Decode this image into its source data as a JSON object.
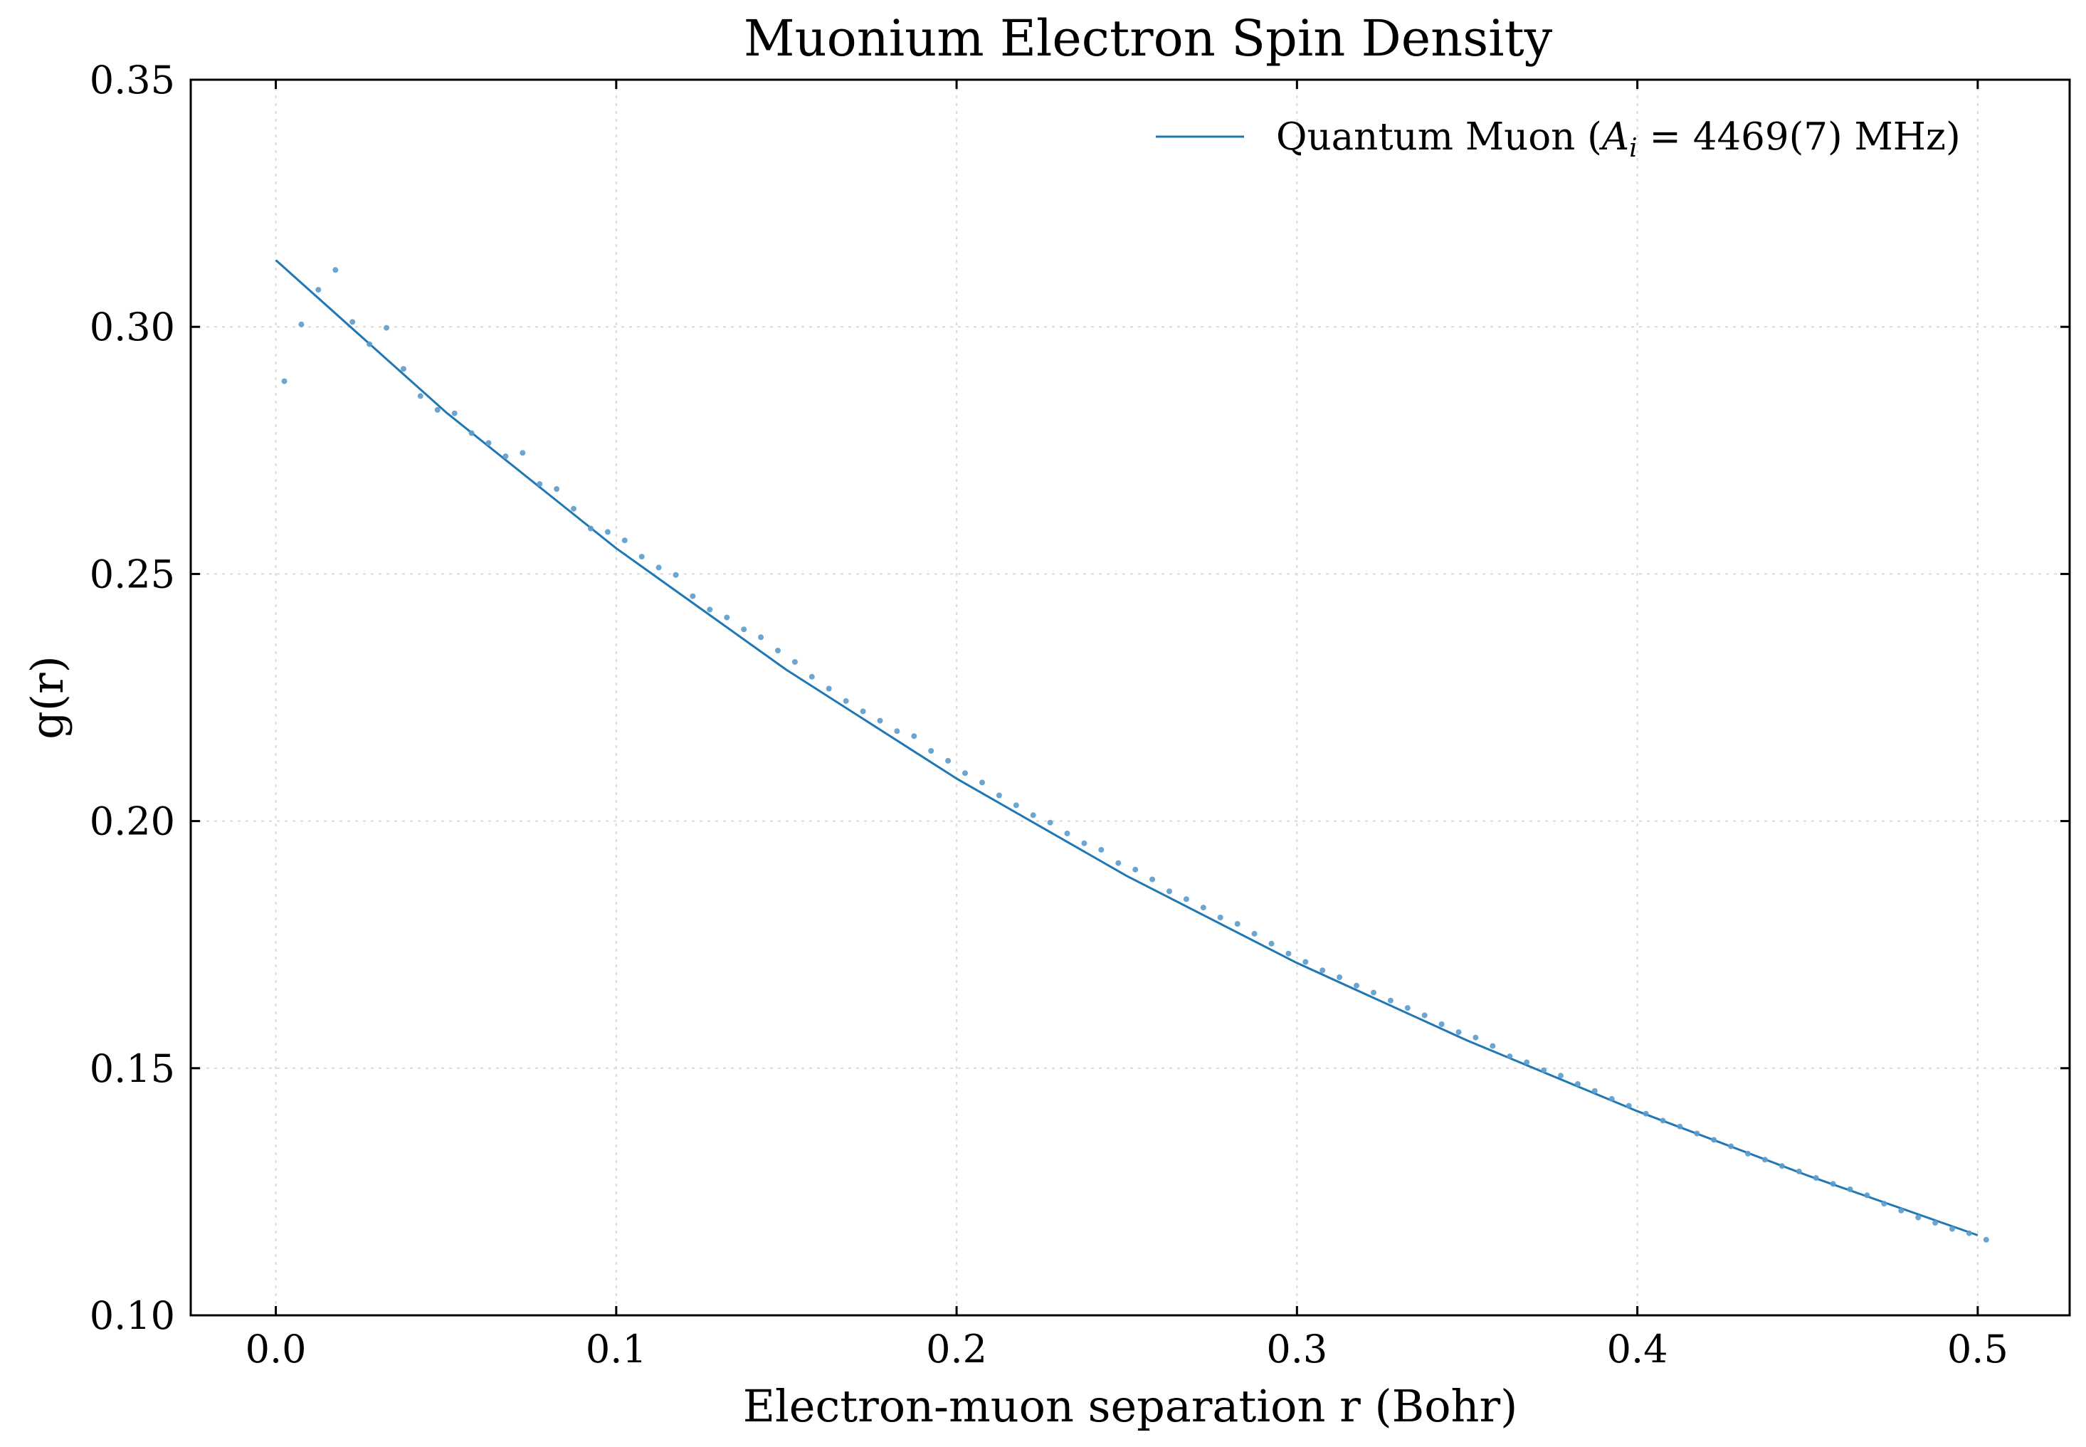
{
  "chart_data": {
    "type": "line",
    "title": "Muonium Electron Spin Density",
    "xlabel": "Electron-muon separation r (Bohr)",
    "ylabel": "g(r)",
    "xlim": [
      -0.025,
      0.527
    ],
    "ylim": [
      0.1,
      0.35
    ],
    "xticks": [
      0.0,
      0.1,
      0.2,
      0.3,
      0.4,
      0.5
    ],
    "xtick_labels": [
      "0.0",
      "0.1",
      "0.2",
      "0.3",
      "0.4",
      "0.5"
    ],
    "yticks": [
      0.1,
      0.15,
      0.2,
      0.25,
      0.3,
      0.35
    ],
    "ytick_labels": [
      "0.10",
      "0.15",
      "0.20",
      "0.25",
      "0.30",
      "0.35"
    ],
    "grid": true,
    "legend_position": "top-right",
    "legend": {
      "prefix": "Quantum Muon (",
      "symbol": "A",
      "subscript": "i",
      "suffix": " = 4469(7) MHz)"
    },
    "colors": {
      "line": "#1f77b4",
      "points": "#5b9bcb"
    },
    "series": [
      {
        "name": "Quantum Muon (A_i = 4469(7) MHz)",
        "kind": "line",
        "x": [
          0.0,
          0.05,
          0.1,
          0.15,
          0.2,
          0.25,
          0.3,
          0.35,
          0.4,
          0.45,
          0.5
        ],
        "y": [
          0.3135,
          0.2827,
          0.2552,
          0.2306,
          0.2086,
          0.1889,
          0.1713,
          0.1556,
          0.1413,
          0.1283,
          0.1162
        ]
      },
      {
        "kind": "scatter",
        "x": [
          0.0025,
          0.0075,
          0.0125,
          0.0175,
          0.0225,
          0.0275,
          0.0325,
          0.0375,
          0.0425,
          0.0475,
          0.0525,
          0.0575,
          0.0625,
          0.0675,
          0.0725,
          0.0775,
          0.0825,
          0.0875,
          0.0925,
          0.0975,
          0.1025,
          0.1075,
          0.1125,
          0.1175,
          0.1225,
          0.1275,
          0.1325,
          0.1375,
          0.1425,
          0.1475,
          0.1525,
          0.1575,
          0.1625,
          0.1675,
          0.1725,
          0.1775,
          0.1825,
          0.1875,
          0.1925,
          0.1975,
          0.2025,
          0.2075,
          0.2125,
          0.2175,
          0.2225,
          0.2275,
          0.2325,
          0.2375,
          0.2425,
          0.2475,
          0.2525,
          0.2575,
          0.2625,
          0.2675,
          0.2725,
          0.2775,
          0.2825,
          0.2875,
          0.2925,
          0.2975,
          0.3025,
          0.3075,
          0.3125,
          0.3175,
          0.3225,
          0.3275,
          0.3325,
          0.3375,
          0.3425,
          0.3475,
          0.3525,
          0.3575,
          0.3625,
          0.3675,
          0.3725,
          0.3775,
          0.3825,
          0.3875,
          0.3925,
          0.3975,
          0.4025,
          0.4075,
          0.4125,
          0.4175,
          0.4225,
          0.4275,
          0.4325,
          0.4375,
          0.4425,
          0.4475,
          0.4525,
          0.4575,
          0.4625,
          0.4675,
          0.4725,
          0.4775,
          0.4825,
          0.4875,
          0.4925,
          0.4975,
          0.5025
        ],
        "y": [
          0.289,
          0.3005,
          0.3075,
          0.3115,
          0.301,
          0.2965,
          0.2998,
          0.2915,
          0.286,
          0.2832,
          0.2825,
          0.2785,
          0.2765,
          0.2738,
          0.2745,
          0.2682,
          0.2672,
          0.2632,
          0.2592,
          0.2585,
          0.2568,
          0.2535,
          0.2513,
          0.2498,
          0.2455,
          0.2428,
          0.2412,
          0.2388,
          0.2372,
          0.2345,
          0.2322,
          0.2292,
          0.2268,
          0.2243,
          0.2222,
          0.2203,
          0.2182,
          0.2172,
          0.2142,
          0.2122,
          0.2097,
          0.2078,
          0.2052,
          0.2032,
          0.2012,
          0.1997,
          0.1975,
          0.1955,
          0.1942,
          0.1915,
          0.1902,
          0.1882,
          0.1858,
          0.1842,
          0.1825,
          0.1805,
          0.1792,
          0.1772,
          0.1752,
          0.1732,
          0.1715,
          0.1698,
          0.1684,
          0.1667,
          0.1653,
          0.1637,
          0.1622,
          0.1607,
          0.1589,
          0.1573,
          0.1562,
          0.1545,
          0.1524,
          0.1512,
          0.1496,
          0.1485,
          0.1468,
          0.1454,
          0.1438,
          0.1424,
          0.1408,
          0.1394,
          0.1382,
          0.1368,
          0.1355,
          0.1342,
          0.1327,
          0.1315,
          0.1302,
          0.1291,
          0.1278,
          0.1266,
          0.1255,
          0.1243,
          0.1226,
          0.1212,
          0.1198,
          0.1187,
          0.1175,
          0.1166,
          0.1153
        ]
      }
    ]
  }
}
